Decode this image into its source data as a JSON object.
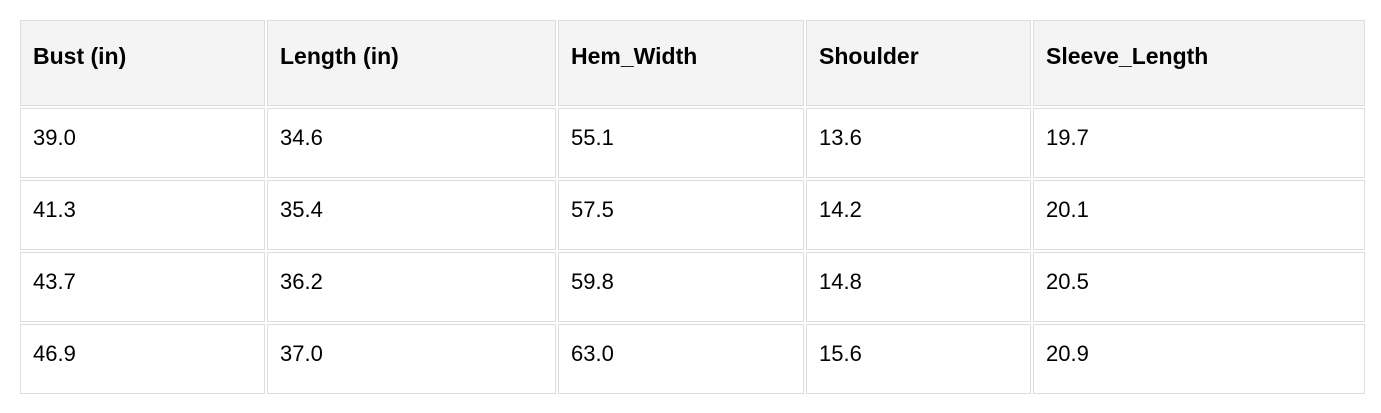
{
  "table": {
    "headers": [
      "Bust (in)",
      "Length (in)",
      "Hem_Width",
      "Shoulder",
      "Sleeve_Length"
    ],
    "rows": [
      [
        "39.0",
        "34.6",
        "55.1",
        "13.6",
        "19.7"
      ],
      [
        "41.3",
        "35.4",
        "57.5",
        "14.2",
        "20.1"
      ],
      [
        "43.7",
        "36.2",
        "59.8",
        "14.8",
        "20.5"
      ],
      [
        "46.9",
        "37.0",
        "63.0",
        "15.6",
        "20.9"
      ]
    ]
  }
}
